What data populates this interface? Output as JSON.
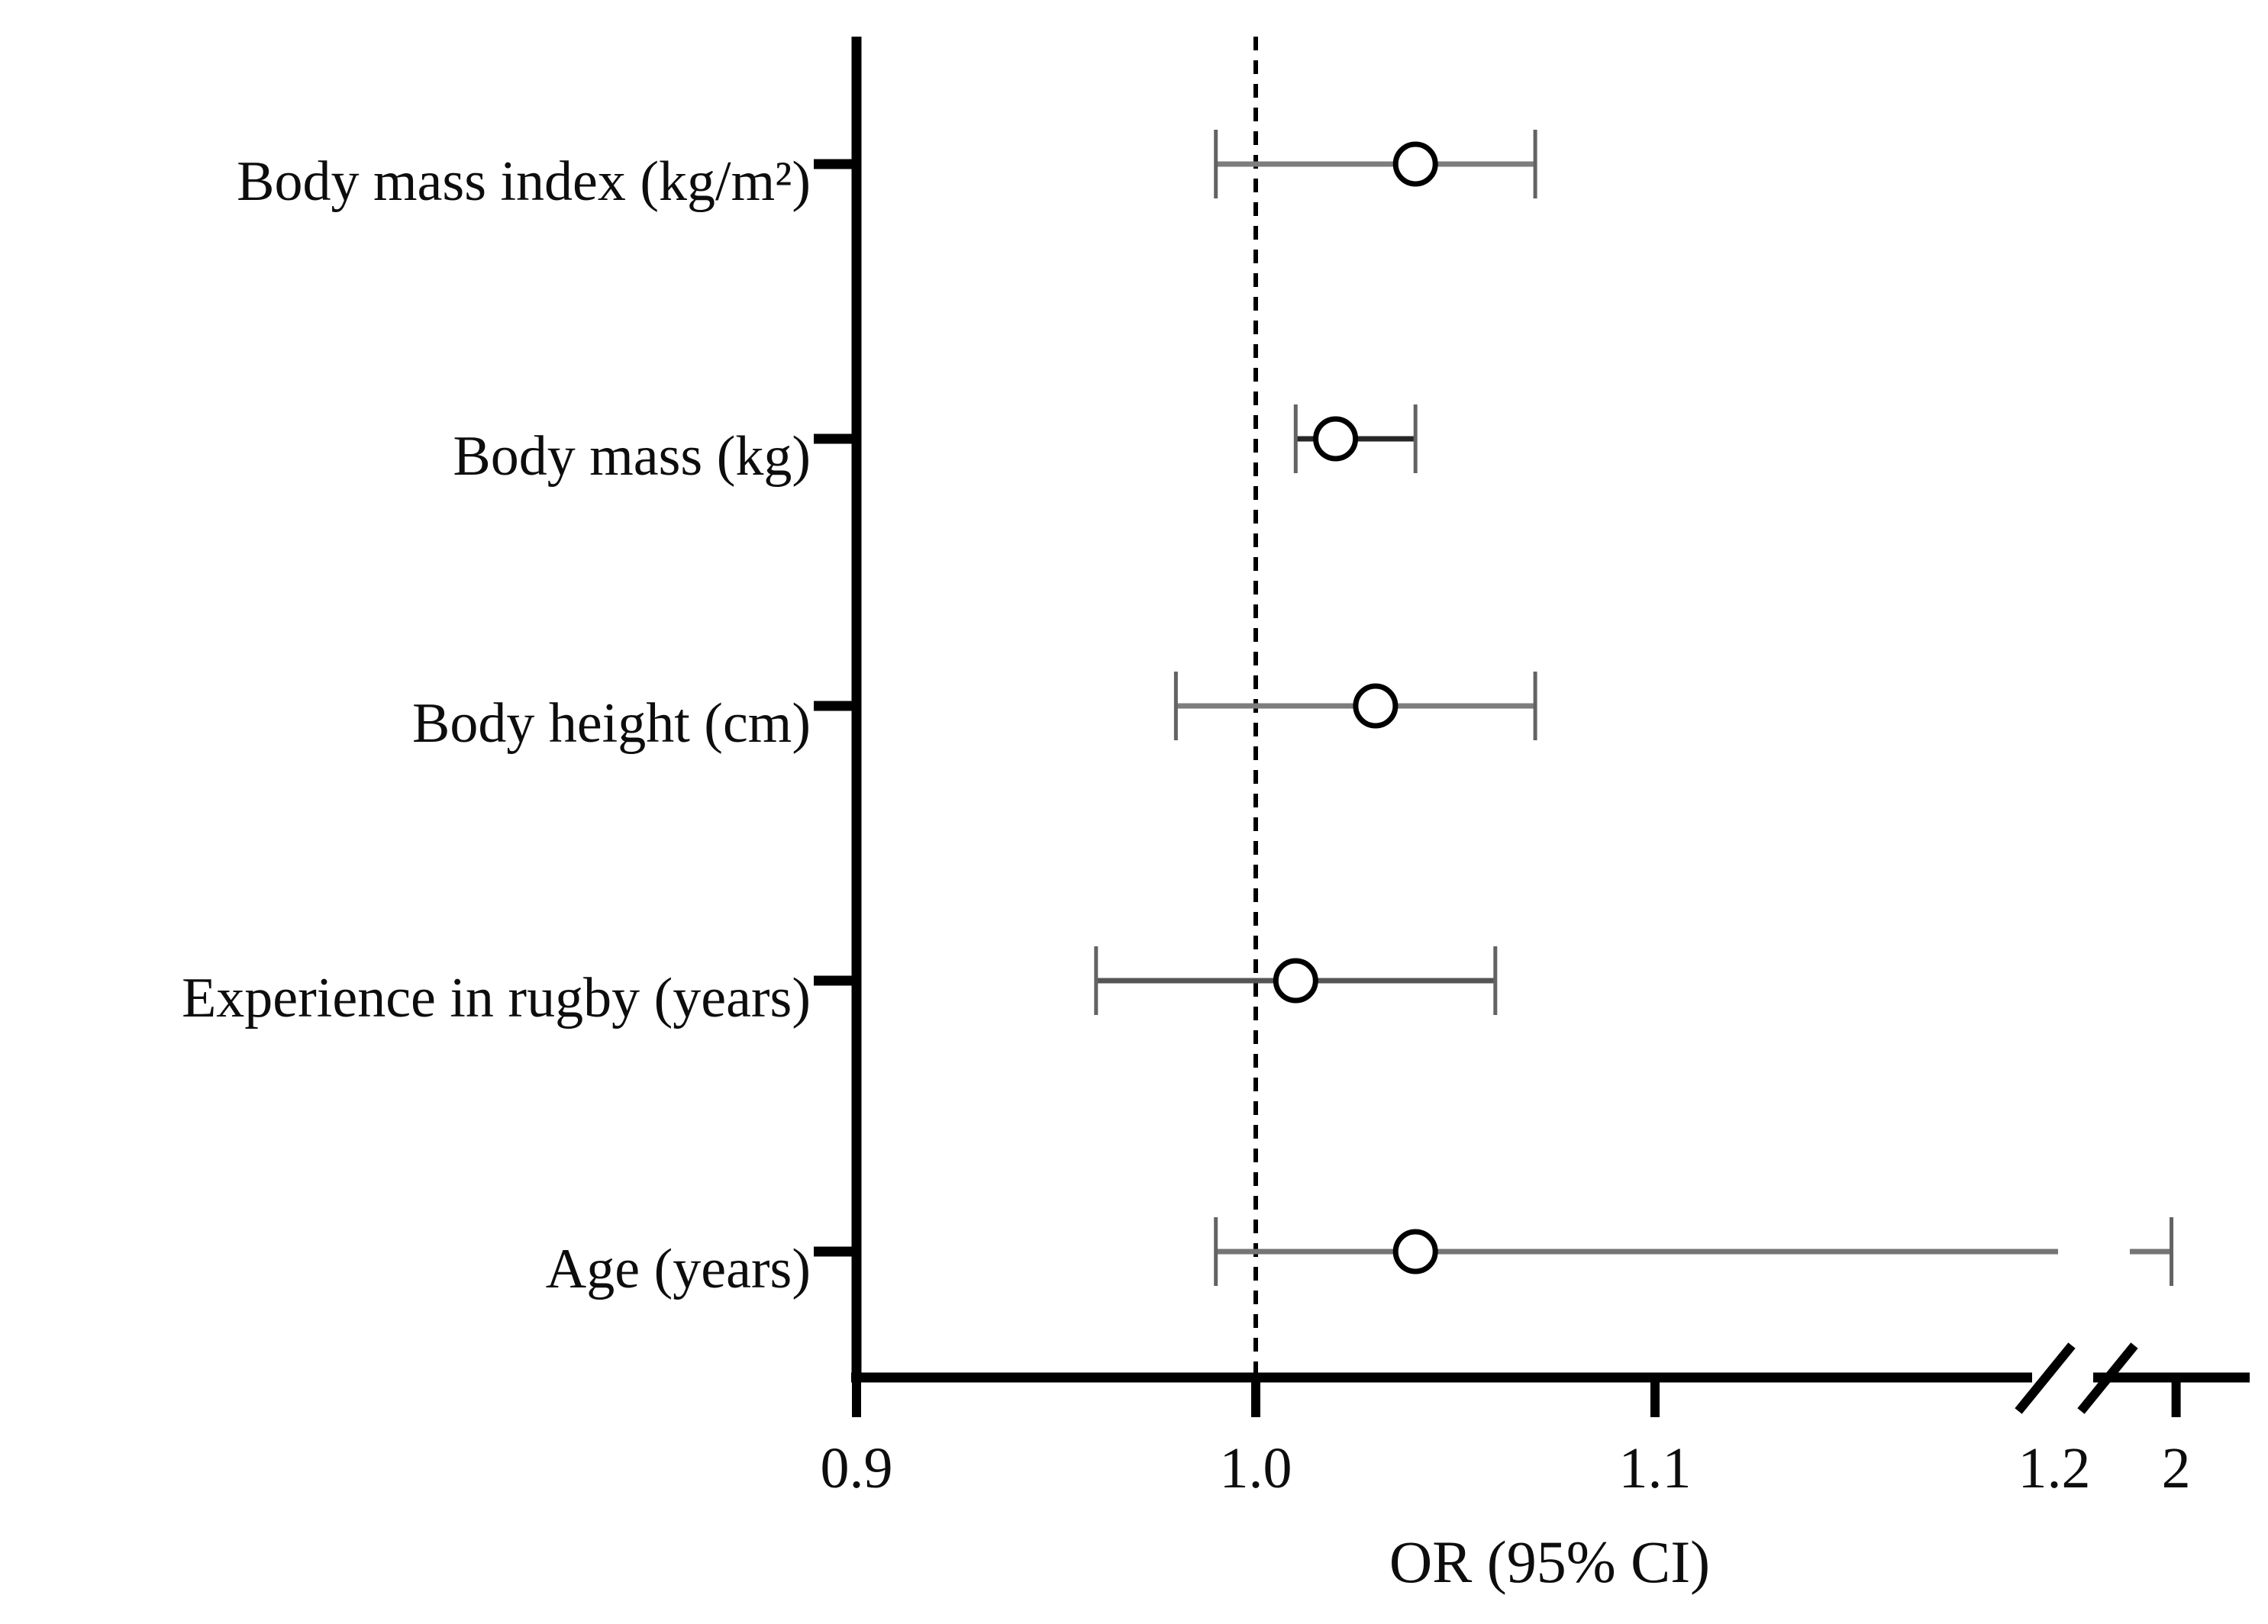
{
  "figure": {
    "kind": "forest plot of odds ratios with 95% confidence intervals",
    "background": "#ffffff"
  },
  "chart_data": {
    "type": "scatter",
    "subtype": "forest-plot",
    "title": "",
    "xlabel": "OR (95% CI)",
    "ylabel": "",
    "legend": "none",
    "grid": false,
    "marker": {
      "shape": "open-circle",
      "fill": "#ffffff",
      "stroke": "#000000"
    },
    "x_axis": {
      "ticks": [
        {
          "value": 0.9,
          "label": "0.9",
          "has_tick_mark": true
        },
        {
          "value": 1.0,
          "label": "1.0",
          "has_tick_mark": true
        },
        {
          "value": 1.1,
          "label": "1.1",
          "has_tick_mark": true
        },
        {
          "value": 1.2,
          "label": "1.2",
          "has_tick_mark": false
        },
        {
          "value": 2.0,
          "label": "2",
          "has_tick_mark": true
        }
      ],
      "range_left_of_break": [
        0.9,
        1.2
      ],
      "range_right_of_break": [
        1.2,
        2.0
      ],
      "axis_break": {
        "present": true,
        "between": [
          1.2,
          2.0
        ],
        "style": "double-slash"
      }
    },
    "reference_line": {
      "value": 1.0,
      "style": "dashed",
      "color": "#000000"
    },
    "rows": [
      {
        "category": "Body mass index (kg/m²)",
        "or": 1.04,
        "ci_low": 0.99,
        "ci_high": 1.07,
        "line_color": "#7d7d7d"
      },
      {
        "category": "Body mass (kg)",
        "or": 1.02,
        "ci_low": 1.01,
        "ci_high": 1.04,
        "line_color": "#262626"
      },
      {
        "category": "Body height (cm)",
        "or": 1.03,
        "ci_low": 0.98,
        "ci_high": 1.07,
        "line_color": "#7d7d7d"
      },
      {
        "category": "Experience in rugby (years)",
        "or": 1.01,
        "ci_low": 0.96,
        "ci_high": 1.06,
        "line_color": "#555555"
      },
      {
        "category": "Age (years)",
        "or": 1.04,
        "ci_low": 0.99,
        "ci_high": 1.97,
        "line_color": "#757575"
      }
    ],
    "colors": {
      "axis": "#000000",
      "cap": "#636363",
      "marker_stroke": "#000000",
      "marker_fill": "#ffffff"
    }
  }
}
